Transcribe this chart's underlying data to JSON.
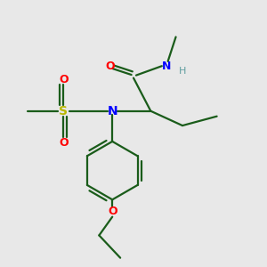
{
  "bg_color": "#e8e8e8",
  "bond_color": "#1a5c1a",
  "N_color": "#0000ff",
  "O_color": "#ff0000",
  "S_color": "#b8b800",
  "H_color": "#5f9ea0",
  "line_width": 1.6,
  "figsize": [
    3.0,
    3.0
  ],
  "dpi": 100,
  "xlim": [
    0,
    10
  ],
  "ylim": [
    0,
    10
  ]
}
